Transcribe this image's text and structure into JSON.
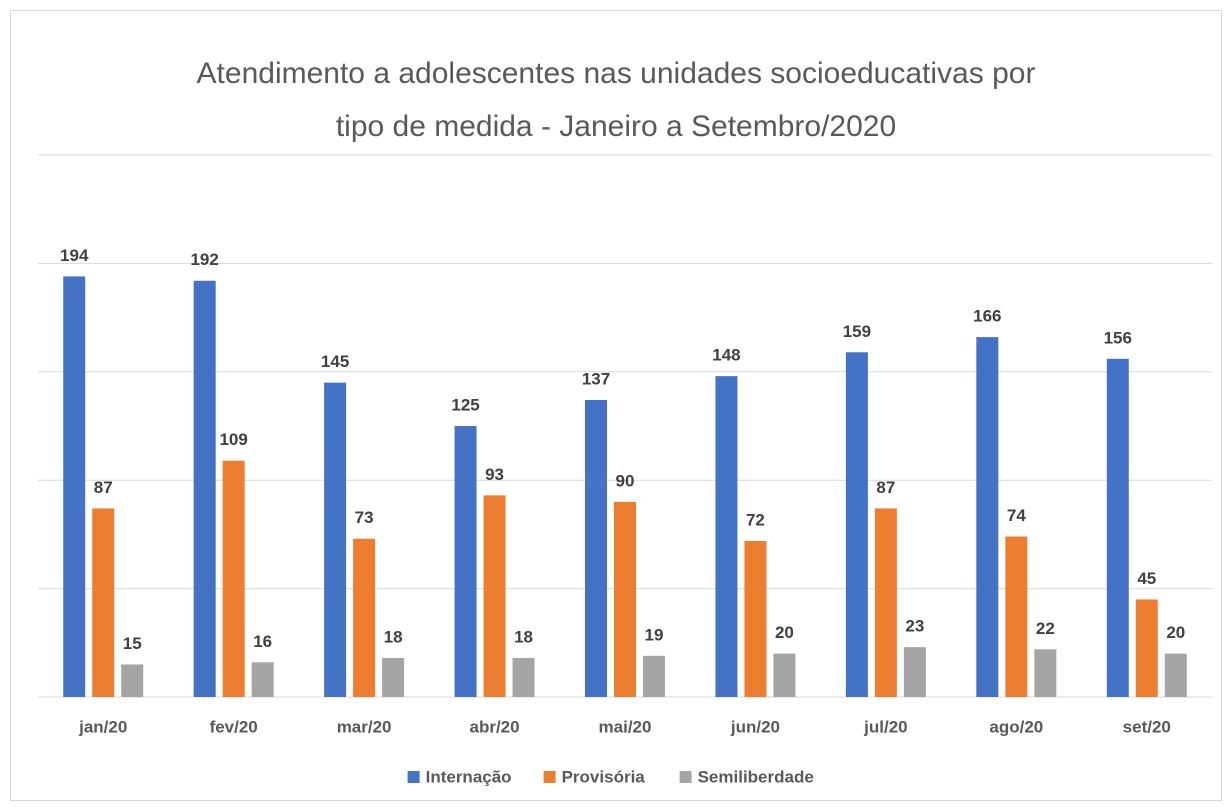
{
  "chart_data": {
    "type": "bar",
    "title": [
      "Atendimento a adolescentes nas unidades socioeducativas por",
      "tipo de medida - Janeiro a Setembro/2020"
    ],
    "categories": [
      "jan/20",
      "fev/20",
      "mar/20",
      "abr/20",
      "mai/20",
      "jun/20",
      "jul/20",
      "ago/20",
      "set/20"
    ],
    "series": [
      {
        "name": "Internação",
        "color": "#4472c4",
        "values": [
          194,
          192,
          145,
          125,
          137,
          148,
          159,
          166,
          156
        ]
      },
      {
        "name": "Provisória",
        "color": "#ed7d31",
        "values": [
          87,
          109,
          73,
          93,
          90,
          72,
          87,
          74,
          45
        ]
      },
      {
        "name": "Semiliberdade",
        "color": "#a5a5a5",
        "values": [
          15,
          16,
          18,
          18,
          19,
          20,
          23,
          22,
          20
        ]
      }
    ],
    "ylim": [
      0,
      250
    ],
    "yticks": [
      0,
      50,
      100,
      150,
      200,
      250
    ],
    "grid": true,
    "legend": "bottom"
  }
}
